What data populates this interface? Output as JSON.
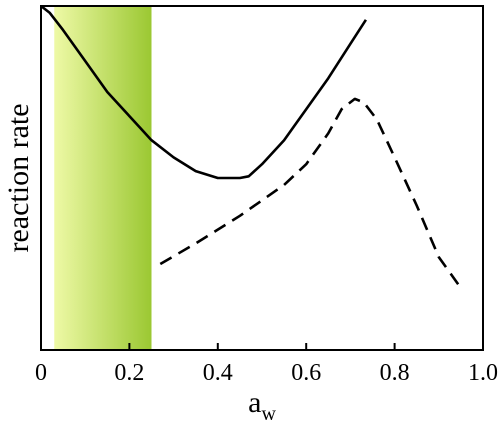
{
  "chart_data": {
    "type": "line",
    "title": "",
    "xlabel": "a",
    "xlabel_subscript": "w",
    "ylabel": "reaction rate",
    "xlim": [
      0,
      1.0
    ],
    "ylim": [
      0,
      1.0
    ],
    "x_ticks": [
      "0",
      "0.2",
      "0.4",
      "0.6",
      "0.8",
      "1.0"
    ],
    "y_ticks_shown": false,
    "grid": false,
    "legend": "none",
    "shaded_region": {
      "x_start": 0.03,
      "x_end": 0.25,
      "color_light": "#eef9a6",
      "color_dark": "#9bc832"
    },
    "series": [
      {
        "style": "solid",
        "color": "#000000",
        "points": [
          {
            "x": 0.0,
            "y": 1.0
          },
          {
            "x": 0.02,
            "y": 0.98
          },
          {
            "x": 0.05,
            "y": 0.93
          },
          {
            "x": 0.1,
            "y": 0.84
          },
          {
            "x": 0.15,
            "y": 0.75
          },
          {
            "x": 0.2,
            "y": 0.68
          },
          {
            "x": 0.25,
            "y": 0.61
          },
          {
            "x": 0.3,
            "y": 0.56
          },
          {
            "x": 0.35,
            "y": 0.52
          },
          {
            "x": 0.4,
            "y": 0.5
          },
          {
            "x": 0.45,
            "y": 0.5
          },
          {
            "x": 0.47,
            "y": 0.505
          },
          {
            "x": 0.5,
            "y": 0.54
          },
          {
            "x": 0.55,
            "y": 0.61
          },
          {
            "x": 0.6,
            "y": 0.7
          },
          {
            "x": 0.65,
            "y": 0.79
          },
          {
            "x": 0.7,
            "y": 0.89
          },
          {
            "x": 0.735,
            "y": 0.96
          }
        ]
      },
      {
        "style": "dashed",
        "color": "#000000",
        "points": [
          {
            "x": 0.27,
            "y": 0.25
          },
          {
            "x": 0.35,
            "y": 0.31
          },
          {
            "x": 0.45,
            "y": 0.39
          },
          {
            "x": 0.55,
            "y": 0.48
          },
          {
            "x": 0.6,
            "y": 0.54
          },
          {
            "x": 0.65,
            "y": 0.63
          },
          {
            "x": 0.68,
            "y": 0.7
          },
          {
            "x": 0.71,
            "y": 0.73
          },
          {
            "x": 0.73,
            "y": 0.72
          },
          {
            "x": 0.76,
            "y": 0.67
          },
          {
            "x": 0.8,
            "y": 0.56
          },
          {
            "x": 0.85,
            "y": 0.42
          },
          {
            "x": 0.9,
            "y": 0.27
          },
          {
            "x": 0.95,
            "y": 0.18
          }
        ]
      }
    ]
  }
}
